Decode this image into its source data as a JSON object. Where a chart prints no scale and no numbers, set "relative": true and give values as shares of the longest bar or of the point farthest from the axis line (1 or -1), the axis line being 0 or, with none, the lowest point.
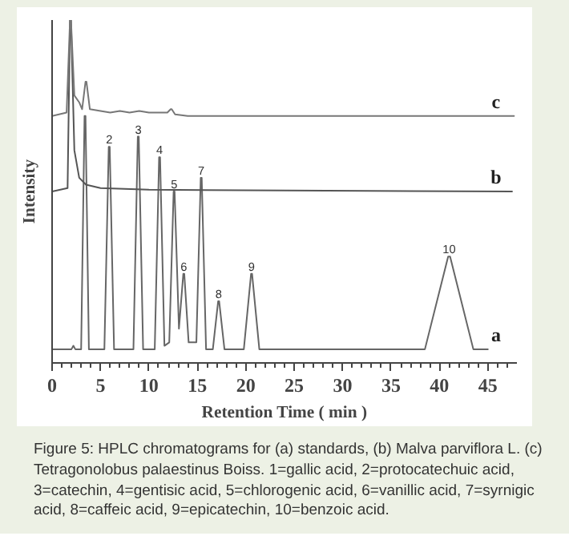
{
  "chart_data": {
    "type": "line",
    "relative": true,
    "xlabel": "Retention Time ( min )",
    "ylabel": "Intensity",
    "xlim": [
      0,
      48
    ],
    "xticks": [
      0,
      {
        "value": 1,
        "label": null
      },
      {
        "value": 2,
        "label": null
      },
      {
        "value": 3,
        "label": null
      },
      {
        "value": 4,
        "label": null
      },
      5,
      {
        "value": 6,
        "label": null
      },
      {
        "value": 7,
        "label": null
      },
      {
        "value": 8,
        "label": null
      },
      {
        "value": 9,
        "label": null
      },
      10,
      {
        "value": 11,
        "label": null
      },
      {
        "value": 12,
        "label": null
      },
      {
        "value": 13,
        "label": null
      },
      {
        "value": 14,
        "label": null
      },
      15,
      {
        "value": 16,
        "label": null
      },
      {
        "value": 17,
        "label": null
      },
      {
        "value": 18,
        "label": null
      },
      {
        "value": 19,
        "label": null
      },
      20,
      {
        "value": 21,
        "label": null
      },
      {
        "value": 22,
        "label": null
      },
      {
        "value": 23,
        "label": null
      },
      {
        "value": 24,
        "label": null
      },
      25,
      {
        "value": 26,
        "label": null
      },
      {
        "value": 27,
        "label": null
      },
      {
        "value": 28,
        "label": null
      },
      {
        "value": 29,
        "label": null
      },
      30,
      {
        "value": 31,
        "label": null
      },
      {
        "value": 32,
        "label": null
      },
      {
        "value": 33,
        "label": null
      },
      {
        "value": 34,
        "label": null
      },
      35,
      {
        "value": 36,
        "label": null
      },
      {
        "value": 37,
        "label": null
      },
      {
        "value": 38,
        "label": null
      },
      {
        "value": 39,
        "label": null
      },
      40,
      {
        "value": 41,
        "label": null
      },
      {
        "value": 42,
        "label": null
      },
      {
        "value": 43,
        "label": null
      },
      {
        "value": 44,
        "label": null
      },
      45,
      {
        "value": 46,
        "label": null
      },
      {
        "value": 47,
        "label": null
      }
    ],
    "grid": false,
    "marker": "none",
    "line_style": "solid",
    "series": [
      {
        "name": "a",
        "color": "#666666",
        "x": [
          0,
          2.0,
          2.2,
          2.4,
          3.0,
          3.35,
          3.4,
          3.45,
          3.8,
          5.4,
          5.85,
          5.9,
          5.95,
          6.4,
          8.4,
          8.85,
          8.9,
          8.95,
          9.4,
          10.6,
          11.05,
          11.1,
          11.15,
          11.6,
          12.1,
          12.55,
          12.6,
          12.65,
          13.1,
          13.55,
          13.6,
          13.65,
          14.1,
          14.9,
          15.35,
          15.4,
          15.45,
          15.9,
          16.6,
          17.15,
          17.2,
          17.25,
          17.8,
          19.8,
          20.55,
          20.6,
          20.65,
          21.4,
          38.5,
          40.9,
          41.0,
          41.1,
          43.5,
          45
        ],
        "values": [
          0.04,
          0.04,
          0.05,
          0.04,
          0.04,
          0.72,
          0.72,
          0.72,
          0.04,
          0.04,
          0.63,
          0.63,
          0.63,
          0.04,
          0.04,
          0.66,
          0.66,
          0.66,
          0.04,
          0.04,
          0.6,
          0.6,
          0.6,
          0.05,
          0.06,
          0.5,
          0.5,
          0.5,
          0.1,
          0.26,
          0.26,
          0.26,
          0.06,
          0.06,
          0.54,
          0.54,
          0.54,
          0.04,
          0.04,
          0.18,
          0.18,
          0.18,
          0.04,
          0.04,
          0.26,
          0.26,
          0.26,
          0.04,
          0.04,
          0.31,
          0.31,
          0.31,
          0.04,
          0.04
        ]
      },
      {
        "name": "b",
        "color": "#555555",
        "x": [
          0,
          1.6,
          1.85,
          1.9,
          1.95,
          2.3,
          2.8,
          3.5,
          5,
          10,
          47.5
        ],
        "values": [
          0.5,
          0.51,
          1.0,
          1.0,
          1.0,
          0.62,
          0.54,
          0.52,
          0.51,
          0.505,
          0.5
        ]
      },
      {
        "name": "c",
        "color": "#777777",
        "x": [
          0,
          1.5,
          1.85,
          1.9,
          1.95,
          2.3,
          2.8,
          3.1,
          3.45,
          3.5,
          3.55,
          3.9,
          5,
          6,
          7,
          8,
          9,
          10,
          11,
          11.9,
          12.25,
          12.3,
          12.35,
          12.7,
          14,
          47.7
        ],
        "values": [
          0.72,
          0.73,
          1.0,
          1.0,
          1.0,
          0.78,
          0.76,
          0.74,
          0.82,
          0.82,
          0.82,
          0.74,
          0.735,
          0.73,
          0.735,
          0.73,
          0.735,
          0.73,
          0.73,
          0.73,
          0.74,
          0.74,
          0.74,
          0.725,
          0.72,
          0.72
        ]
      }
    ],
    "annotations": [
      {
        "text": "2",
        "x": 5.9,
        "y": 0.63
      },
      {
        "text": "3",
        "x": 8.9,
        "y": 0.66
      },
      {
        "text": "4",
        "x": 11.1,
        "y": 0.6
      },
      {
        "text": "5",
        "x": 12.6,
        "y": 0.5
      },
      {
        "text": "6",
        "x": 13.6,
        "y": 0.26
      },
      {
        "text": "7",
        "x": 15.4,
        "y": 0.54
      },
      {
        "text": "8",
        "x": 17.2,
        "y": 0.18
      },
      {
        "text": "9",
        "x": 20.6,
        "y": 0.26
      },
      {
        "text": "10",
        "x": 41.0,
        "y": 0.31
      },
      "Figure 5: HPLC chromatograms for (a) standards, (b) Malva parviflora L. (c) Tetragonolobus palaestinus Boiss. 1=gallic acid, 2=protocatechuic acid, 3=catechin, 4=gentisic acid, 5=chlorogenic acid, 6=vanillic acid, 7=syrnigic acid, 8=caffeic acid, 9=epicatechin, 10=benzoic acid."
    ]
  }
}
